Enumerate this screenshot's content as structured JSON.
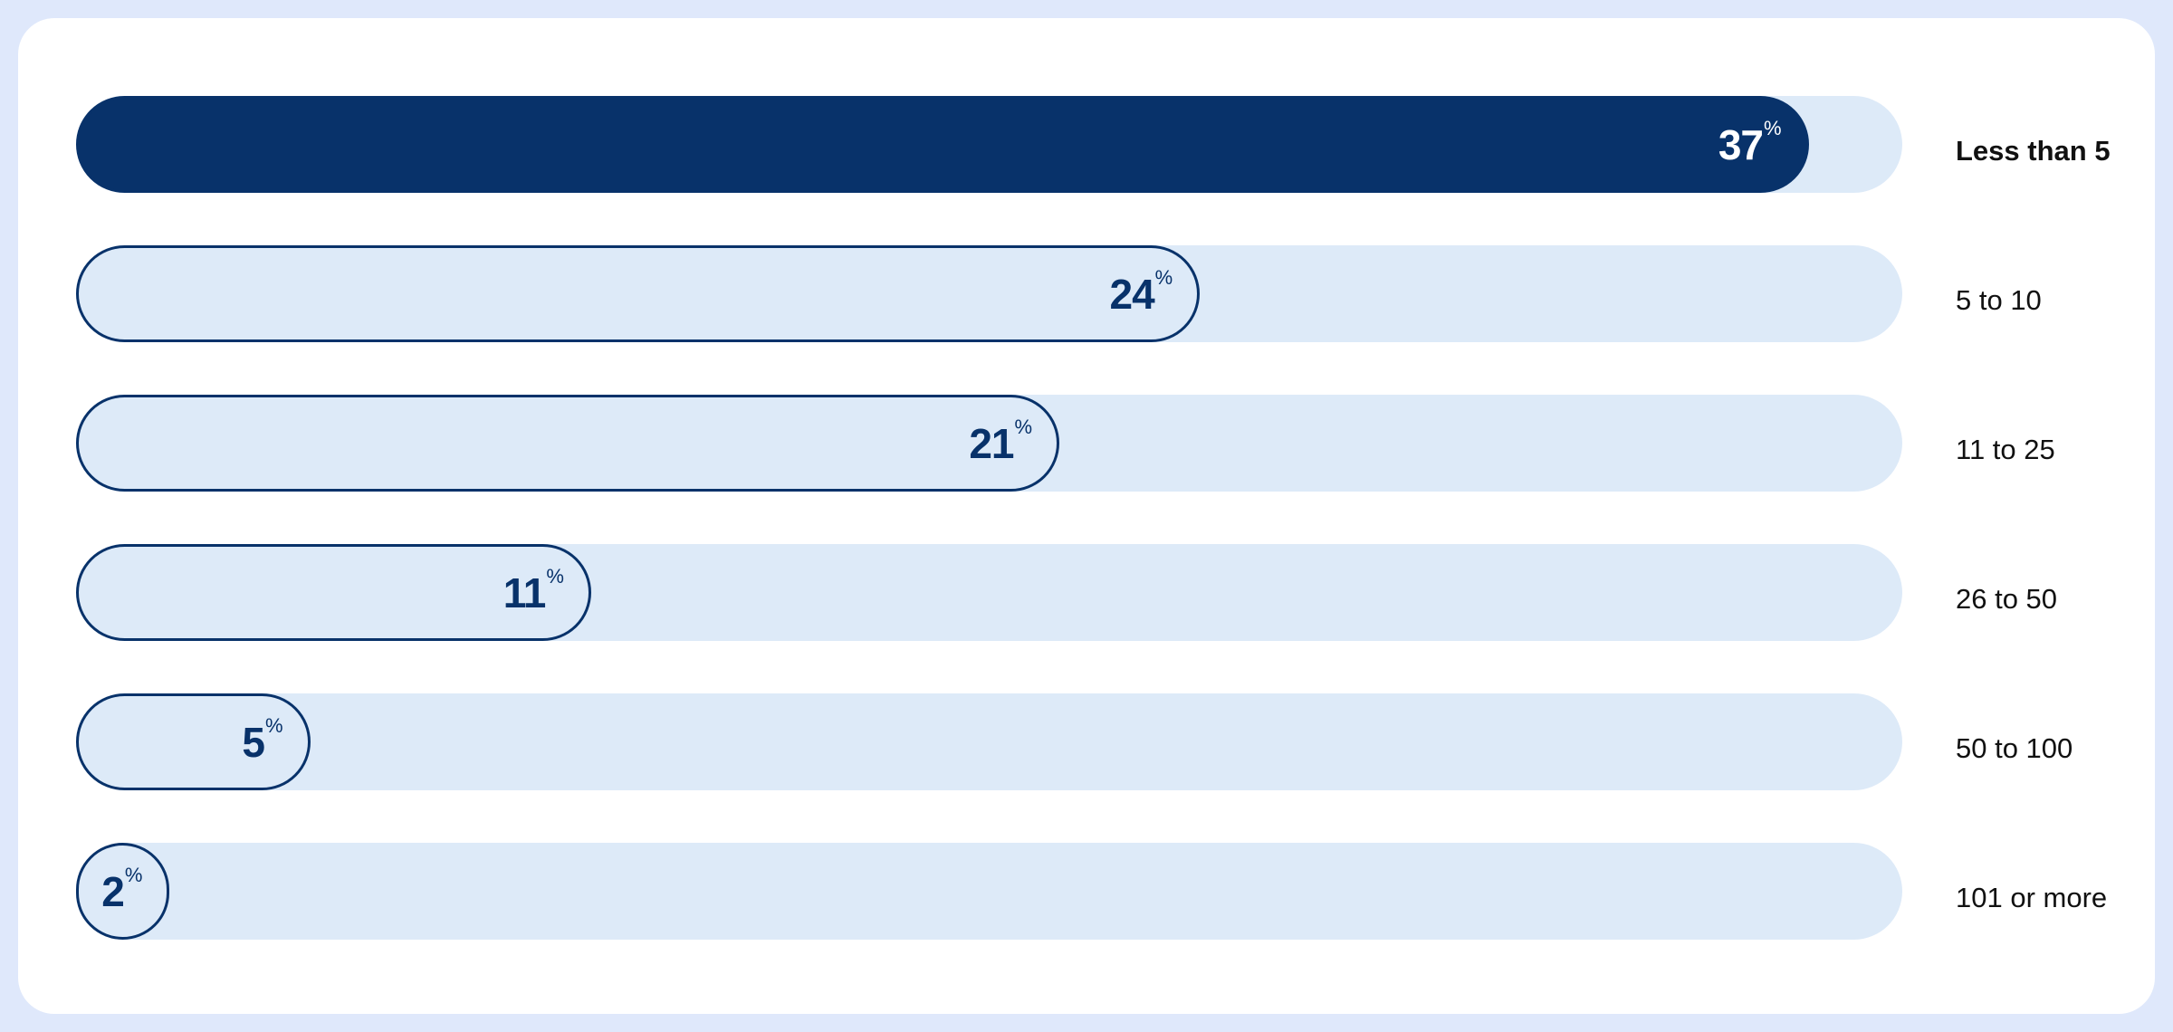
{
  "chart_data": {
    "type": "bar",
    "orientation": "horizontal",
    "categories": [
      "Less than 5",
      "5 to 10",
      "11 to 25",
      "26 to 50",
      "50 to 100",
      "101 or more"
    ],
    "values": [
      37,
      24,
      21,
      11,
      5,
      2
    ],
    "unit": "%",
    "highlighted_category": "Less than 5",
    "xlim": [
      0,
      39
    ],
    "grid": false,
    "colors": {
      "highlight": "#08326a",
      "bar": "#ddeaf8",
      "track": "#ddeaf8",
      "outline": "#08326a",
      "frame": "#dfe8fb"
    }
  }
}
